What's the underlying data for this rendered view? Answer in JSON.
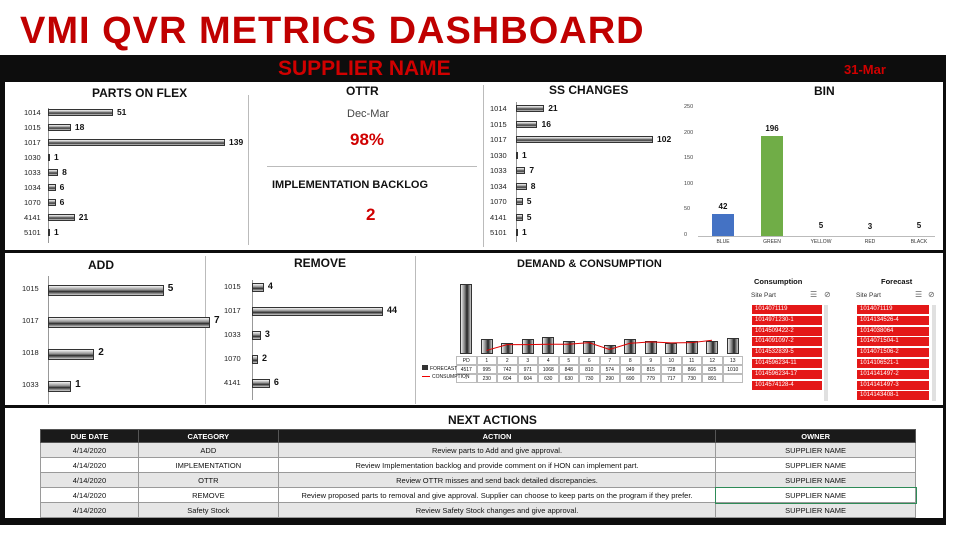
{
  "header": {
    "title": "VMI QVR METRICS DASHBOARD",
    "supplier": "SUPPLIER NAME",
    "date": "31-Mar"
  },
  "parts_on_flex": {
    "title": "PARTS ON FLEX",
    "chart_data": {
      "type": "bar",
      "orientation": "horizontal",
      "categories": [
        "1014",
        "1015",
        "1017",
        "1030",
        "1033",
        "1034",
        "1070",
        "4141",
        "5101"
      ],
      "values": [
        51,
        18,
        139,
        1,
        8,
        6,
        6,
        21,
        1
      ]
    }
  },
  "ottr": {
    "title": "OTTR",
    "period": "Dec-Mar",
    "value": "98%"
  },
  "backlog": {
    "title": "IMPLEMENTATION BACKLOG",
    "value": "2"
  },
  "ss_changes": {
    "title": "SS CHANGES",
    "chart_data": {
      "type": "bar",
      "orientation": "horizontal",
      "categories": [
        "1014",
        "1015",
        "1017",
        "1030",
        "1033",
        "1034",
        "1070",
        "4141",
        "5101"
      ],
      "values": [
        21,
        16,
        102,
        1,
        7,
        8,
        5,
        5,
        1
      ]
    }
  },
  "bin": {
    "title": "BIN",
    "chart_data": {
      "type": "bar",
      "categories": [
        "BLUE",
        "GREEN",
        "YELLOW",
        "RED",
        "BLACK"
      ],
      "values": [
        42,
        196,
        5,
        3,
        5
      ],
      "colors": [
        "#4472c4",
        "#70ad47",
        "#ffffff",
        "#ffffff",
        "#ffffff"
      ],
      "yticks": [
        "250",
        "200",
        "150",
        "100",
        "50",
        "0"
      ],
      "ylim": [
        0,
        250
      ]
    }
  },
  "add": {
    "title": "ADD",
    "chart_data": {
      "type": "bar",
      "orientation": "horizontal",
      "categories": [
        "1015",
        "1017",
        "1018",
        "1033"
      ],
      "values": [
        5,
        7,
        2,
        1
      ]
    }
  },
  "remove": {
    "title": "REMOVE",
    "chart_data": {
      "type": "bar",
      "orientation": "horizontal",
      "categories": [
        "1015",
        "1017",
        "1033",
        "1070",
        "4141"
      ],
      "values": [
        4,
        44,
        3,
        2,
        6
      ]
    }
  },
  "demand": {
    "title": "DEMAND & CONSUMPTION",
    "chart_data": {
      "type": "bar",
      "categories": [
        "PD",
        "1",
        "2",
        "3",
        "4",
        "5",
        "6",
        "7",
        "8",
        "9",
        "10",
        "11",
        "12",
        "13"
      ],
      "series": [
        {
          "name": "FORECAST",
          "values": [
            4517,
            995,
            742,
            971,
            1068,
            848,
            810,
            574,
            949,
            815,
            728,
            866,
            825,
            1010
          ]
        },
        {
          "name": "CONSUMPTION",
          "values": [
            "-",
            230,
            604,
            604,
            630,
            630,
            730,
            290,
            690,
            779,
            717,
            730,
            891,
            null
          ]
        }
      ]
    },
    "consumption_slicer": {
      "title": "Consumption",
      "field": "Site Part",
      "items": [
        "1014071119",
        "1014971230-1",
        "1014509422-2",
        "1014091097-2",
        "1014532839-5",
        "1014596234-11",
        "1014596234-17",
        "1014574128-4"
      ]
    },
    "forecast_slicer": {
      "title": "Forecast",
      "field": "Site Part",
      "items": [
        "1014071119",
        "1014134526-4",
        "1014038064",
        "1014071504-1",
        "1014071506-2",
        "1014106521-1",
        "1014141497-2",
        "1014141497-3",
        "1014143408-1"
      ]
    }
  },
  "next_actions": {
    "title": "NEXT ACTIONS",
    "columns": [
      "DUE DATE",
      "CATEGORY",
      "ACTION",
      "OWNER"
    ],
    "rows": [
      [
        "4/14/2020",
        "ADD",
        "Review parts to Add and give approval.",
        "SUPPLIER NAME"
      ],
      [
        "4/14/2020",
        "IMPLEMENTATION",
        "Review Implementation backlog and provide comment on if HON can implement part.",
        "SUPPLIER NAME"
      ],
      [
        "4/14/2020",
        "OTTR",
        "Review OTTR misses and send back detailed discrepancies.",
        "SUPPLIER NAME"
      ],
      [
        "4/14/2020",
        "REMOVE",
        "Review proposed parts to removal and give approval. Supplier can choose to keep parts on the program if they prefer.",
        "SUPPLIER NAME"
      ],
      [
        "4/14/2020",
        "Safety Stock",
        "Review Safety Stock changes and give approval.",
        "SUPPLIER NAME"
      ]
    ]
  }
}
